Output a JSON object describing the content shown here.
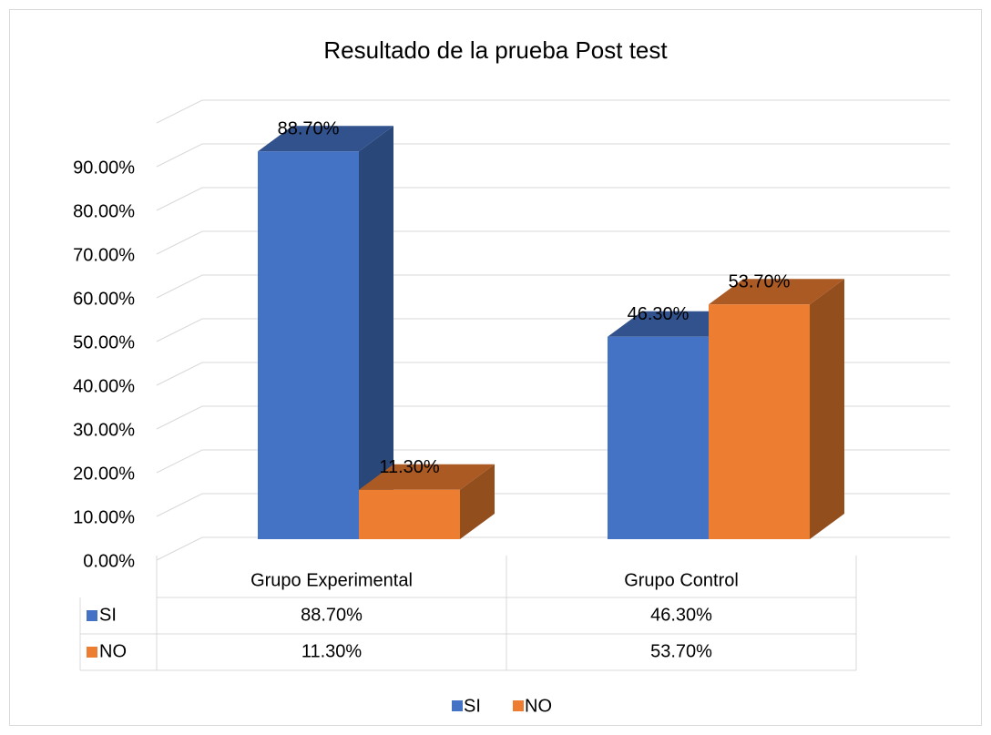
{
  "chart_data": {
    "type": "bar3d",
    "title": "Resultado de la prueba Post test",
    "categories": [
      "Grupo Experimental",
      "Grupo Control"
    ],
    "series": [
      {
        "name": "SI",
        "color": "#4472c4",
        "values": [
          88.7,
          46.3
        ],
        "value_labels": [
          "88.70%",
          "46.30%"
        ]
      },
      {
        "name": "NO",
        "color": "#ed7d31",
        "values": [
          11.3,
          53.7
        ],
        "value_labels": [
          "11.30%",
          "53.70%"
        ]
      }
    ],
    "ylim": [
      0,
      100
    ],
    "yticks": [
      {
        "value": 0,
        "label": "0.00%"
      },
      {
        "value": 10,
        "label": "10.00%"
      },
      {
        "value": 20,
        "label": "20.00%"
      },
      {
        "value": 30,
        "label": "30.00%"
      },
      {
        "value": 40,
        "label": "40.00%"
      },
      {
        "value": 50,
        "label": "50.00%"
      },
      {
        "value": 60,
        "label": "60.00%"
      },
      {
        "value": 70,
        "label": "70.00%"
      },
      {
        "value": 80,
        "label": "80.00%"
      },
      {
        "value": 90,
        "label": "90.00%"
      }
    ],
    "grid": true,
    "legend": "bottom",
    "data_table": true
  }
}
